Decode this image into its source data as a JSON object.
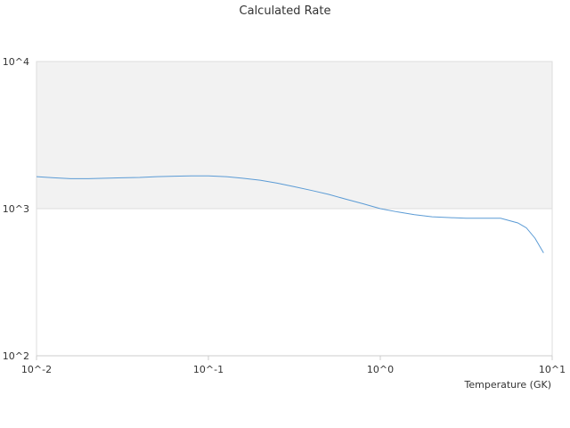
{
  "chart_data": {
    "type": "line",
    "title": "Calculated Rate",
    "xlabel": "Temperature (GK)",
    "ylabel": "",
    "x_scale": "log",
    "y_scale": "log",
    "xlim": [
      0.01,
      10
    ],
    "ylim": [
      100,
      10000
    ],
    "x_ticks": [
      {
        "value": 0.01,
        "label": "10^-2"
      },
      {
        "value": 0.1,
        "label": "10^-1"
      },
      {
        "value": 1,
        "label": "10^0"
      },
      {
        "value": 10,
        "label": "10^1"
      }
    ],
    "y_ticks": [
      {
        "value": 100,
        "label": "10^2"
      },
      {
        "value": 1000,
        "label": "10^3"
      },
      {
        "value": 10000,
        "label": "10^4"
      }
    ],
    "shaded_band": {
      "from": 1000,
      "to": 10000,
      "color": "#f2f2f2"
    },
    "grid": false,
    "colors": {
      "line": "#5b9bd5",
      "axis": "#cccccc",
      "gridline": "#dddddd"
    },
    "series": [
      {
        "x": [
          0.01,
          0.0126,
          0.0158,
          0.02,
          0.0251,
          0.0316,
          0.0398,
          0.0501,
          0.0631,
          0.0794,
          0.1,
          0.126,
          0.158,
          0.2,
          0.251,
          0.316,
          0.398,
          0.501,
          0.631,
          0.794,
          1.0,
          1.26,
          1.58,
          2.0,
          2.51,
          3.16,
          3.98,
          5.01,
          6.31,
          7.08,
          7.94,
          8.91
        ],
        "y": [
          1650,
          1620,
          1600,
          1600,
          1610,
          1620,
          1630,
          1650,
          1660,
          1670,
          1670,
          1650,
          1610,
          1560,
          1490,
          1410,
          1330,
          1250,
          1160,
          1080,
          1000,
          950,
          910,
          880,
          870,
          860,
          860,
          860,
          800,
          740,
          630,
          500
        ]
      }
    ]
  }
}
